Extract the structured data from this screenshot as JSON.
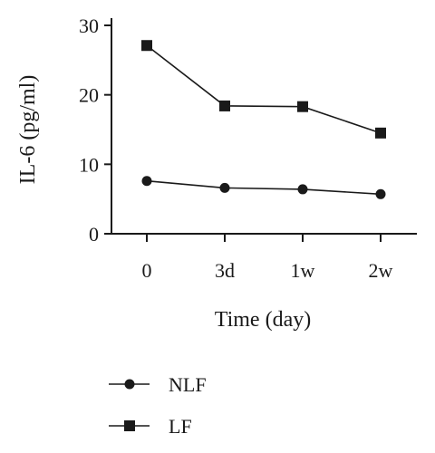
{
  "chart_data": {
    "type": "line",
    "xlabel": "Time (day)",
    "ylabel": "IL-6 (pg/ml)",
    "categories": [
      "0",
      "3d",
      "1w",
      "2w"
    ],
    "ylim": [
      0,
      30
    ],
    "yticks": [
      0,
      10,
      20,
      30
    ],
    "grid": false,
    "legend_position": "bottom-left",
    "series": [
      {
        "name": "NLF",
        "marker": "circle",
        "color": "#1a1a1a",
        "values": [
          7.6,
          6.6,
          6.4,
          5.7
        ]
      },
      {
        "name": "LF",
        "marker": "square",
        "color": "#1a1a1a",
        "values": [
          27.1,
          18.4,
          18.3,
          14.5
        ]
      }
    ]
  }
}
